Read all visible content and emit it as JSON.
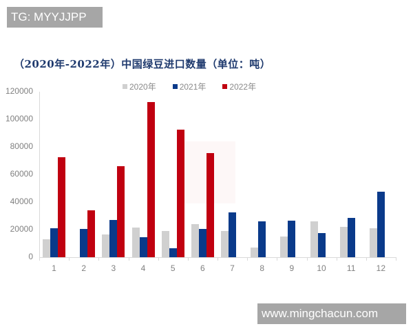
{
  "overlay": {
    "top_left": "TG: MYYJJPP",
    "bottom_right": "www.mingchacun.com"
  },
  "chart_data": {
    "type": "bar",
    "title": "（2020年-2022年）中国绿豆进口数量（单位：吨）",
    "xlabel": "",
    "ylabel": "",
    "categories": [
      "1",
      "2",
      "3",
      "4",
      "5",
      "6",
      "7",
      "8",
      "9",
      "10",
      "11",
      "12"
    ],
    "series": [
      {
        "name": "2020年",
        "color": "#d0d0d0",
        "values": [
          13000,
          0,
          16500,
          21500,
          19000,
          24000,
          18800,
          7000,
          14800,
          25800,
          22000,
          21000
        ]
      },
      {
        "name": "2021年",
        "color": "#0a3a8a",
        "values": [
          21000,
          20500,
          27000,
          14500,
          6500,
          20500,
          32500,
          26000,
          26500,
          17500,
          28500,
          47500
        ]
      },
      {
        "name": "2022年",
        "color": "#c00010",
        "values": [
          72500,
          34000,
          65800,
          112500,
          92300,
          75500,
          null,
          null,
          null,
          null,
          null,
          null
        ]
      }
    ],
    "yticks": [
      "0",
      "20000",
      "40000",
      "60000",
      "80000",
      "100000",
      "120000"
    ],
    "ylim": [
      0,
      120000
    ],
    "grid": false,
    "legend_position": "top"
  }
}
